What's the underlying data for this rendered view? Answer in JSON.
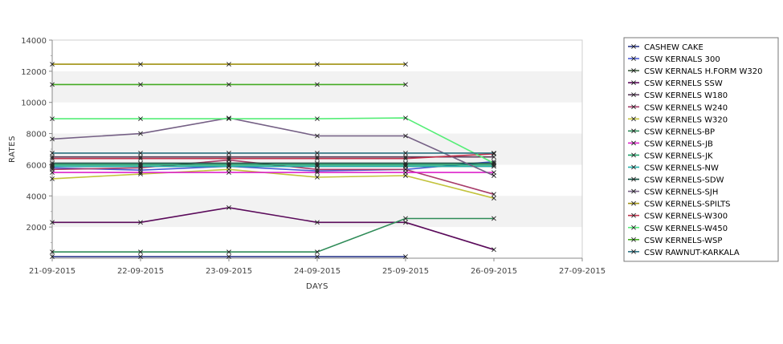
{
  "chart_data": {
    "type": "line",
    "xlabel": "DAYS",
    "ylabel": "RATES",
    "x_ticks": [
      "21-09-2015",
      "22-09-2015",
      "23-09-2015",
      "24-09-2015",
      "25-09-2015",
      "26-09-2015",
      "27-09-2015"
    ],
    "ylim": [
      0,
      14000
    ],
    "y_ticks": [
      "2000",
      "4000",
      "6000",
      "8000",
      "10000",
      "12000",
      "14000"
    ],
    "grid": "alternating horizontal bands",
    "legend_placement": "right",
    "marker": "x",
    "series": [
      {
        "name": "CASHEW CAKE",
        "color": "#2d3a8c",
        "values": [
          100,
          100,
          100,
          100,
          100,
          null
        ]
      },
      {
        "name": "CSW KERNALS 300",
        "color": "#4a5bd6",
        "values": [
          5800,
          5650,
          5900,
          5600,
          5700,
          6200
        ]
      },
      {
        "name": "CSW KERNALS H.FORM W320",
        "color": "#3c5a3c",
        "values": [
          5900,
          5900,
          5900,
          5900,
          5900,
          5900
        ]
      },
      {
        "name": "CSW KERNELS SSW",
        "color": "#5a0a5a",
        "values": [
          2300,
          2300,
          3250,
          2300,
          2300,
          550
        ]
      },
      {
        "name": "CSW KERNELS W180",
        "color": "#5a3c5a",
        "values": [
          6500,
          6500,
          6500,
          6500,
          6500,
          6500
        ]
      },
      {
        "name": "CSW KERNELS W240",
        "color": "#a83c6a",
        "values": [
          5700,
          5800,
          6300,
          5700,
          5700,
          4100
        ]
      },
      {
        "name": "CSW KERNELS W320",
        "color": "#c3c33c",
        "values": [
          5100,
          5400,
          5700,
          5200,
          5300,
          3850
        ]
      },
      {
        "name": "CSW KERNELS-BP",
        "color": "#2e8b57",
        "values": [
          400,
          400,
          400,
          400,
          2550,
          2550
        ]
      },
      {
        "name": "CSW KERNELS-JB",
        "color": "#dd22cc",
        "values": [
          5500,
          5500,
          5500,
          5500,
          5500,
          5500
        ]
      },
      {
        "name": "CSW KERNELS-JK",
        "color": "#1aa066",
        "values": [
          6000,
          6000,
          6000,
          6000,
          6000,
          6000
        ]
      },
      {
        "name": "CSW KERNELS-NW",
        "color": "#20b2aa",
        "values": [
          5900,
          5900,
          5900,
          5900,
          5900,
          5900
        ]
      },
      {
        "name": "CSW KERNELS-SDW",
        "color": "#0a4a3a",
        "values": [
          6100,
          6100,
          6100,
          6100,
          6100,
          6100
        ]
      },
      {
        "name": "CSW KERNELS-SJH",
        "color": "#756085",
        "values": [
          7650,
          8000,
          9000,
          7850,
          7850,
          5300
        ]
      },
      {
        "name": "CSW KERNELS-SPILTS",
        "color": "#a09010",
        "values": [
          12450,
          12450,
          12450,
          12450,
          12450,
          null
        ]
      },
      {
        "name": "CSW KERNELS-W300",
        "color": "#c0304a",
        "values": [
          6400,
          6400,
          6400,
          6400,
          6400,
          6700
        ]
      },
      {
        "name": "CSW KERNELS-W450",
        "color": "#55ee77",
        "values": [
          8950,
          8950,
          8950,
          8950,
          9000,
          6100
        ]
      },
      {
        "name": "CSW KERNELS-WSP",
        "color": "#44aa22",
        "values": [
          11150,
          11150,
          11150,
          11150,
          11150,
          null
        ]
      },
      {
        "name": "CSW RAWNUT-KARKALA",
        "color": "#2a7080",
        "values": [
          6750,
          6750,
          6750,
          6750,
          6750,
          6750
        ]
      }
    ]
  }
}
